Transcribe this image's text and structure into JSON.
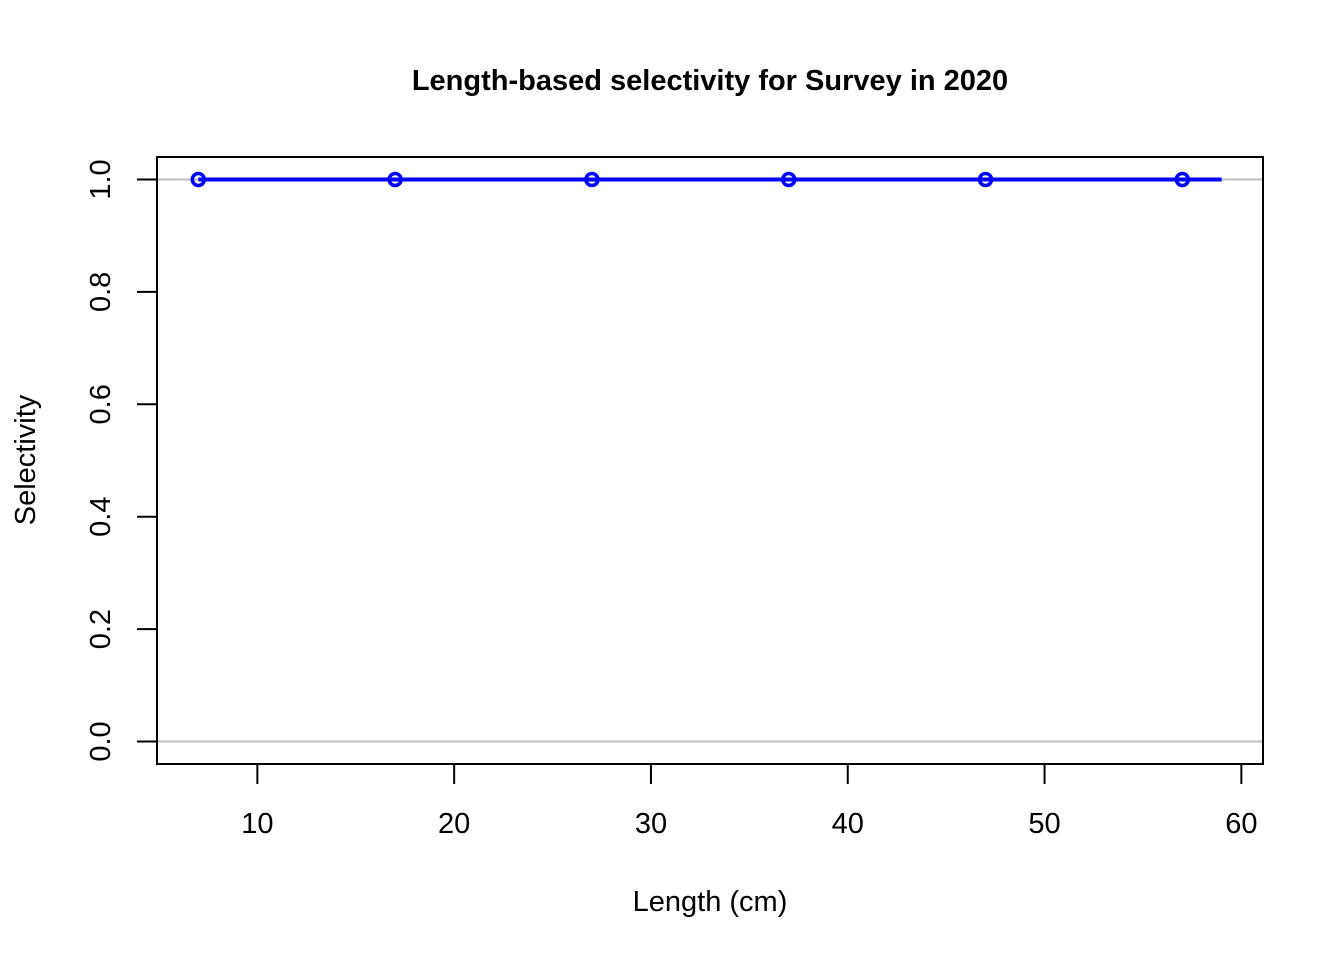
{
  "chart_data": {
    "type": "line",
    "title": "Length-based selectivity for Survey in 2020",
    "xlabel": "Length (cm)",
    "ylabel": "Selectivity",
    "xlim": [
      4.9,
      61.1
    ],
    "ylim": [
      -0.04,
      1.04
    ],
    "x_ticks": [
      10,
      20,
      30,
      40,
      50,
      60
    ],
    "x_tick_labels": [
      "10",
      "20",
      "30",
      "40",
      "50",
      "60"
    ],
    "y_ticks": [
      0,
      0.2,
      0.4,
      0.6,
      0.8,
      1.0
    ],
    "y_tick_labels": [
      "0.0",
      "0.2",
      "0.4",
      "0.6",
      "0.8",
      "1.0"
    ],
    "reference_lines": [
      0,
      1
    ],
    "reference_line_color": "#bebebe",
    "grid": false,
    "series": [
      {
        "color": "#0000ff",
        "line_x": [
          7,
          59
        ],
        "line_y": [
          1,
          1
        ],
        "points": [
          {
            "x": 7,
            "y": 1
          },
          {
            "x": 17,
            "y": 1
          },
          {
            "x": 27,
            "y": 1
          },
          {
            "x": 37,
            "y": 1
          },
          {
            "x": 47,
            "y": 1
          },
          {
            "x": 57,
            "y": 1
          }
        ]
      }
    ]
  }
}
